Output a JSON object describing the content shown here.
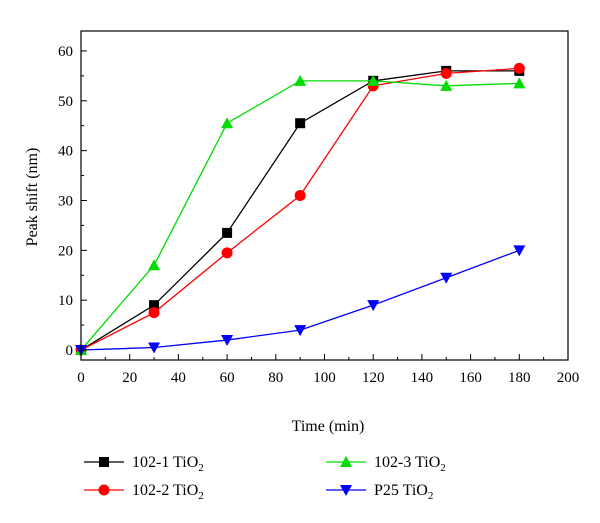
{
  "chart_data": {
    "type": "line",
    "title": "",
    "xlabel": "Time (min)",
    "ylabel": "Peak shift (nm)",
    "xlim": [
      0,
      200
    ],
    "ylim": [
      -2,
      64
    ],
    "xticks": [
      0,
      20,
      40,
      60,
      80,
      100,
      120,
      140,
      160,
      180,
      200
    ],
    "yticks": [
      0,
      10,
      20,
      30,
      40,
      50,
      60
    ],
    "grid": false,
    "legend_position": "bottom",
    "series": [
      {
        "name": "102-1 TiO",
        "subscript": "2",
        "color": "#000000",
        "marker": "square",
        "x": [
          0,
          30,
          60,
          90,
          120,
          150,
          180
        ],
        "y": [
          0,
          9,
          23.5,
          45.5,
          54,
          56,
          56
        ]
      },
      {
        "name": "102-2 TiO",
        "subscript": "2",
        "color": "#ff0000",
        "marker": "circle",
        "x": [
          0,
          30,
          60,
          90,
          120,
          150,
          180
        ],
        "y": [
          0,
          7.5,
          19.5,
          31,
          53,
          55.5,
          56.5
        ]
      },
      {
        "name": "102-3 TiO",
        "subscript": "2",
        "color": "#00dd00",
        "marker": "triangle-up",
        "x": [
          0,
          30,
          60,
          90,
          120,
          150,
          180
        ],
        "y": [
          0,
          17,
          45.5,
          54,
          54,
          53,
          53.5
        ]
      },
      {
        "name": "P25 TiO",
        "subscript": "2",
        "color": "#0000ff",
        "marker": "triangle-down",
        "x": [
          0,
          30,
          60,
          90,
          120,
          150,
          180
        ],
        "y": [
          0,
          0.5,
          2,
          4,
          9,
          14.5,
          20
        ]
      }
    ]
  }
}
